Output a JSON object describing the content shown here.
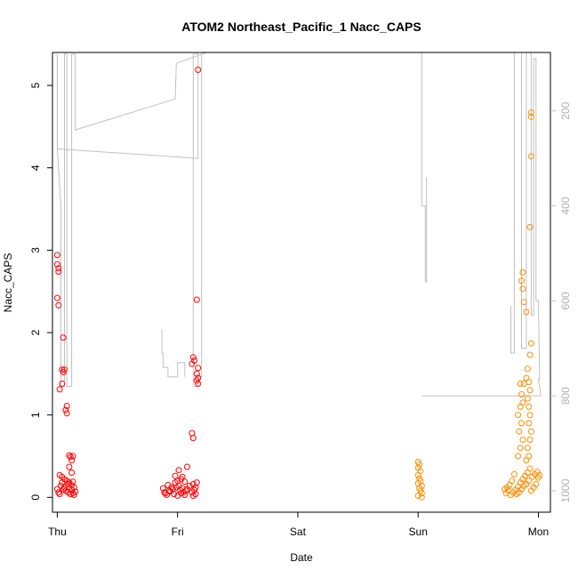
{
  "chart_data": {
    "type": "scatter",
    "title": "ATOM2 Northeast_Pacific_1 Nacc_CAPS",
    "xlabel": "Date",
    "ylabel": "Nacc_CAPS",
    "x_ticks": [
      "Thu",
      "Fri",
      "Sat",
      "Sun",
      "Mon"
    ],
    "xlim": [
      -0.04,
      4.1
    ],
    "ylim": [
      -0.18,
      5.4
    ],
    "y_ticks": [
      0,
      1,
      2,
      3,
      4,
      5
    ],
    "y2_ticks": [
      200,
      400,
      600,
      800,
      1000
    ],
    "y2lim": [
      1045,
      77
    ],
    "y2_color": "#c0c0c0",
    "grid": false,
    "series": [
      {
        "color": "#ff0000",
        "marker": "open-circle",
        "points": [
          [
            0.0,
            2.94
          ],
          [
            0.0,
            2.83
          ],
          [
            0.01,
            2.78
          ],
          [
            0.01,
            2.74
          ],
          [
            0.0,
            2.42
          ],
          [
            0.01,
            2.33
          ],
          [
            0.02,
            1.31
          ],
          [
            0.05,
            1.94
          ],
          [
            0.04,
            1.55
          ],
          [
            0.05,
            1.52
          ],
          [
            0.06,
            1.55
          ],
          [
            0.04,
            1.38
          ],
          [
            0.08,
            1.11
          ],
          [
            0.07,
            1.06
          ],
          [
            0.08,
            1.02
          ],
          [
            0.1,
            0.51
          ],
          [
            0.11,
            0.49
          ],
          [
            0.12,
            0.45
          ],
          [
            0.13,
            0.5
          ],
          [
            0.1,
            0.37
          ],
          [
            0.12,
            0.3
          ],
          [
            0.02,
            0.27
          ],
          [
            0.04,
            0.25
          ],
          [
            0.06,
            0.22
          ],
          [
            0.08,
            0.2
          ],
          [
            0.1,
            0.18
          ],
          [
            0.12,
            0.15
          ],
          [
            0.14,
            0.12
          ],
          [
            0.03,
            0.14
          ],
          [
            0.05,
            0.1
          ],
          [
            0.07,
            0.08
          ],
          [
            0.09,
            0.06
          ],
          [
            0.11,
            0.04
          ],
          [
            0.13,
            0.05
          ],
          [
            0.15,
            0.07
          ],
          [
            0.01,
            0.06
          ],
          [
            0.0,
            0.1
          ],
          [
            0.02,
            0.04
          ],
          [
            0.06,
            0.12
          ],
          [
            0.09,
            0.16
          ],
          [
            0.12,
            0.09
          ],
          [
            0.14,
            0.03
          ],
          [
            0.04,
            0.18
          ],
          [
            0.1,
            0.12
          ],
          [
            0.13,
            0.19
          ],
          [
            0.9,
            0.05
          ],
          [
            0.93,
            0.08
          ],
          [
            0.96,
            0.1
          ],
          [
            0.99,
            0.12
          ],
          [
            1.02,
            0.09
          ],
          [
            1.05,
            0.06
          ],
          [
            0.92,
            0.15
          ],
          [
            0.95,
            0.12
          ],
          [
            0.98,
            0.18
          ],
          [
            1.01,
            0.14
          ],
          [
            1.04,
            0.11
          ],
          [
            1.07,
            0.08
          ],
          [
            0.91,
            0.03
          ],
          [
            0.94,
            0.07
          ],
          [
            0.97,
            0.04
          ],
          [
            1.0,
            0.02
          ],
          [
            1.03,
            0.05
          ],
          [
            1.06,
            0.03
          ],
          [
            1.08,
            0.1
          ],
          [
            1.1,
            0.14
          ],
          [
            1.12,
            0.06
          ],
          [
            1.14,
            0.09
          ],
          [
            1.15,
            0.12
          ],
          [
            0.98,
            0.26
          ],
          [
            1.01,
            0.33
          ],
          [
            1.04,
            0.25
          ],
          [
            1.08,
            0.37
          ],
          [
            1.0,
            0.2
          ],
          [
            1.03,
            0.22
          ],
          [
            1.06,
            0.19
          ],
          [
            1.13,
            0.16
          ],
          [
            1.15,
            0.04
          ],
          [
            1.16,
            0.18
          ],
          [
            1.13,
            0.02
          ],
          [
            0.88,
            0.11
          ],
          [
            0.89,
            0.06
          ],
          [
            1.12,
            0.78
          ],
          [
            1.13,
            0.72
          ],
          [
            1.13,
            1.7
          ],
          [
            1.14,
            1.66
          ],
          [
            1.12,
            1.62
          ],
          [
            1.17,
            1.57
          ],
          [
            1.16,
            1.5
          ],
          [
            1.17,
            1.45
          ],
          [
            1.16,
            1.42
          ],
          [
            1.17,
            1.38
          ],
          [
            1.16,
            2.4
          ],
          [
            1.17,
            5.19
          ]
        ]
      },
      {
        "color": "#ff8c00",
        "marker": "open-circle",
        "points": [
          [
            3.0,
            0.43
          ],
          [
            3.01,
            0.4
          ],
          [
            3.0,
            0.36
          ],
          [
            3.02,
            0.32
          ],
          [
            3.0,
            0.27
          ],
          [
            3.01,
            0.23
          ],
          [
            3.02,
            0.2
          ],
          [
            3.0,
            0.17
          ],
          [
            3.03,
            0.14
          ],
          [
            3.01,
            0.11
          ],
          [
            3.02,
            0.08
          ],
          [
            3.03,
            0.05
          ],
          [
            3.0,
            0.02
          ],
          [
            3.03,
            0.0
          ],
          [
            3.72,
            0.1
          ],
          [
            3.74,
            0.12
          ],
          [
            3.76,
            0.15
          ],
          [
            3.78,
            0.2
          ],
          [
            3.8,
            0.28
          ],
          [
            3.73,
            0.05
          ],
          [
            3.75,
            0.08
          ],
          [
            3.77,
            0.03
          ],
          [
            3.79,
            0.06
          ],
          [
            3.81,
            0.09
          ],
          [
            3.83,
            0.13
          ],
          [
            3.85,
            0.18
          ],
          [
            3.87,
            0.22
          ],
          [
            3.89,
            0.26
          ],
          [
            3.91,
            0.3
          ],
          [
            3.93,
            0.35
          ],
          [
            3.95,
            0.25
          ],
          [
            3.97,
            0.28
          ],
          [
            3.99,
            0.31
          ],
          [
            4.01,
            0.27
          ],
          [
            4.0,
            0.24
          ],
          [
            3.82,
            0.04
          ],
          [
            3.84,
            0.06
          ],
          [
            3.86,
            0.1
          ],
          [
            3.88,
            0.14
          ],
          [
            3.9,
            0.16
          ],
          [
            3.92,
            0.2
          ],
          [
            3.94,
            0.08
          ],
          [
            3.96,
            0.12
          ],
          [
            3.98,
            0.16
          ],
          [
            3.83,
            0.5
          ],
          [
            3.85,
            0.6
          ],
          [
            3.87,
            0.7
          ],
          [
            3.84,
            0.8
          ],
          [
            3.86,
            0.9
          ],
          [
            3.83,
            1.0
          ],
          [
            3.85,
            1.1
          ],
          [
            3.87,
            1.15
          ],
          [
            3.86,
            1.25
          ],
          [
            3.88,
            1.38
          ],
          [
            3.85,
            1.38
          ],
          [
            3.9,
            1.45
          ],
          [
            3.92,
            1.4
          ],
          [
            3.93,
            1.3
          ],
          [
            3.91,
            1.2
          ],
          [
            3.92,
            1.1
          ],
          [
            3.93,
            1.0
          ],
          [
            3.92,
            0.9
          ],
          [
            3.94,
            0.8
          ],
          [
            3.93,
            0.7
          ],
          [
            3.91,
            0.6
          ],
          [
            3.92,
            0.5
          ],
          [
            3.9,
            0.45
          ],
          [
            3.91,
            1.56
          ],
          [
            3.93,
            1.73
          ],
          [
            3.94,
            1.87
          ],
          [
            3.9,
            2.25
          ],
          [
            3.88,
            2.37
          ],
          [
            3.87,
            2.53
          ],
          [
            3.86,
            2.63
          ],
          [
            3.87,
            2.73
          ],
          [
            3.93,
            3.28
          ],
          [
            3.94,
            4.14
          ],
          [
            3.94,
            4.62
          ],
          [
            3.94,
            4.67
          ]
        ]
      }
    ],
    "secondary_series": [
      {
        "color": "#c0c0c0",
        "type": "line",
        "points": [
          [
            0.0,
            80
          ],
          [
            0.0,
            280
          ],
          [
            0.03,
            400
          ],
          [
            0.03,
            780
          ],
          [
            0.06,
            780
          ],
          [
            0.06,
            80
          ],
          [
            0.08,
            80
          ],
          [
            0.08,
            780
          ],
          [
            0.12,
            780
          ],
          [
            0.12,
            750
          ],
          [
            0.12,
            80
          ],
          [
            0.15,
            80
          ],
          [
            0.15,
            240
          ],
          [
            0.98,
            175
          ],
          [
            0.98,
            175
          ],
          [
            0.99,
            100
          ],
          [
            1.24,
            77
          ],
          [
            3.07,
            77
          ],
          [
            3.07,
            77
          ]
        ]
      },
      {
        "color": "#c0c0c0",
        "type": "line",
        "points": [
          [
            0.0,
            280
          ],
          [
            1.17,
            300
          ],
          [
            1.17,
            80
          ],
          [
            1.13,
            80
          ],
          [
            1.13,
            780
          ],
          [
            1.17,
            780
          ],
          [
            1.17,
            760
          ],
          [
            1.2,
            760
          ],
          [
            1.2,
            80
          ]
        ]
      },
      {
        "color": "#c0c0c0",
        "type": "line",
        "points": [
          [
            0.87,
            660
          ],
          [
            0.87,
            710
          ],
          [
            0.88,
            710
          ],
          [
            0.88,
            740
          ],
          [
            0.92,
            740
          ],
          [
            0.92,
            760
          ],
          [
            1.0,
            760
          ],
          [
            1.0,
            730
          ],
          [
            1.06,
            730
          ],
          [
            1.06,
            760
          ]
        ]
      },
      {
        "color": "#c0c0c0",
        "type": "line",
        "points": [
          [
            3.03,
            77
          ],
          [
            3.03,
            400
          ],
          [
            3.06,
            400
          ],
          [
            3.06,
            560
          ],
          [
            3.07,
            560
          ],
          [
            3.07,
            340
          ]
        ]
      },
      {
        "color": "#c0c0c0",
        "type": "line",
        "points": [
          [
            3.03,
            800
          ],
          [
            4.02,
            800
          ],
          [
            4.0,
            765
          ],
          [
            4.01,
            765
          ],
          [
            4.0,
            600
          ],
          [
            3.98,
            600
          ],
          [
            3.98,
            90
          ],
          [
            3.96,
            90
          ],
          [
            3.96,
            630
          ],
          [
            3.94,
            630
          ],
          [
            3.94,
            77
          ],
          [
            3.9,
            77
          ],
          [
            3.9,
            700
          ],
          [
            3.86,
            700
          ],
          [
            3.86,
            77
          ],
          [
            3.8,
            77
          ],
          [
            3.8,
            710
          ],
          [
            3.77,
            710
          ],
          [
            3.77,
            610
          ],
          [
            3.77,
            710
          ],
          [
            3.8,
            710
          ]
        ]
      }
    ]
  }
}
